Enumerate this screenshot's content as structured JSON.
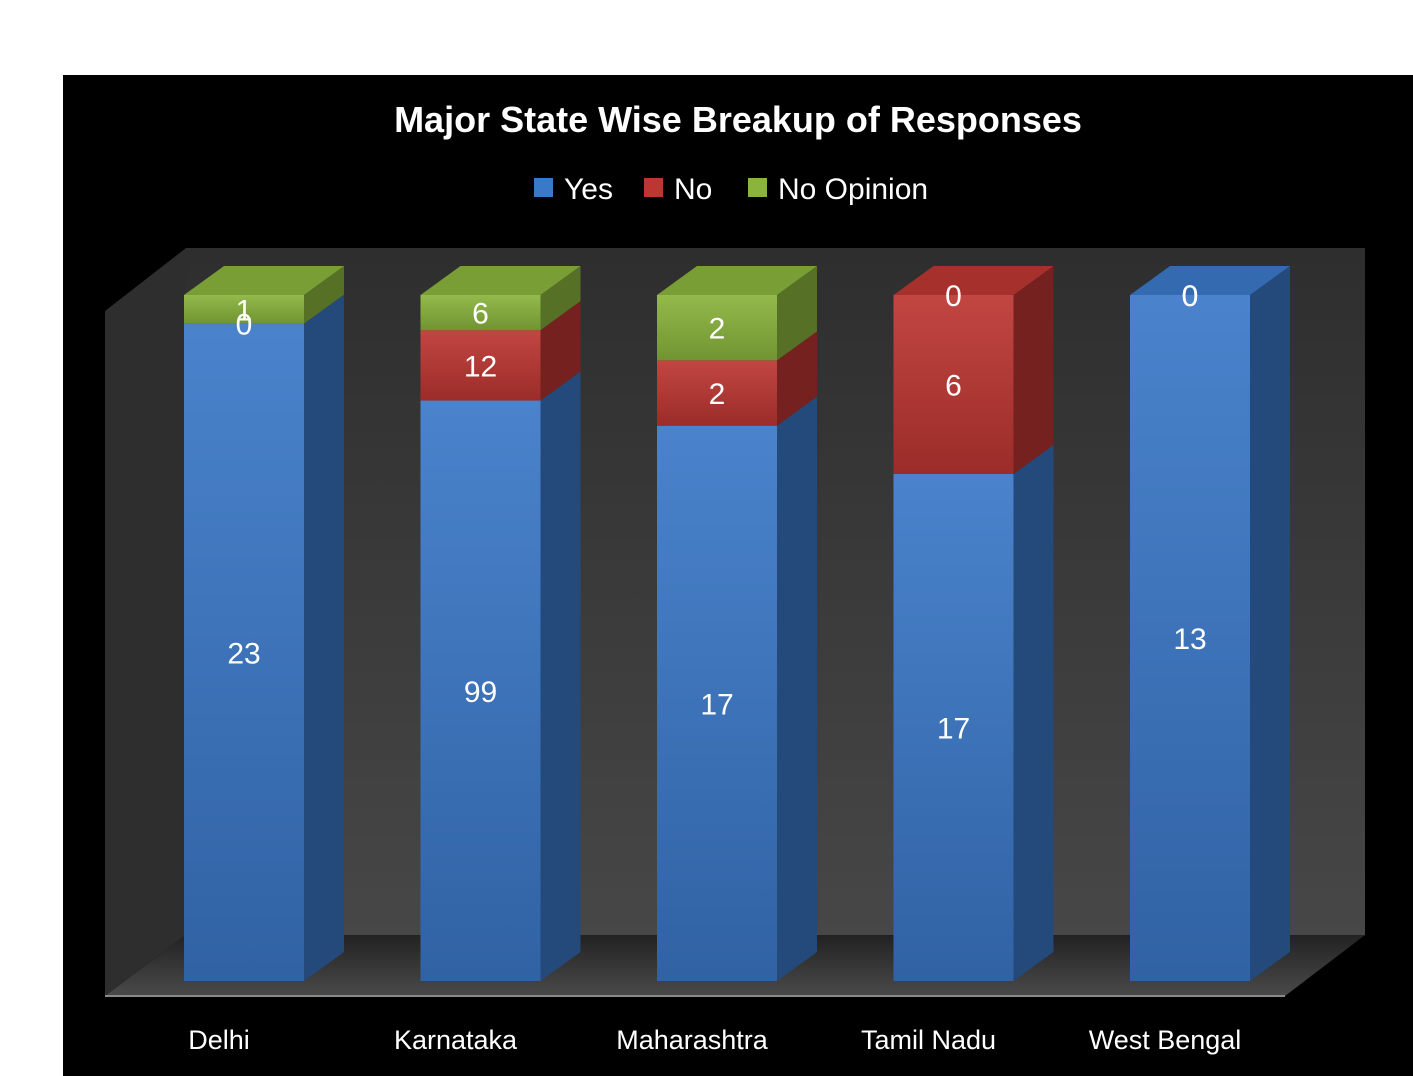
{
  "chart_data": {
    "type": "bar",
    "stacked": true,
    "normalized_percent": true,
    "three_d": true,
    "title": "Major State Wise Breakup of Responses",
    "categories": [
      "Delhi",
      "Karnataka",
      "Maharashtra",
      "Tamil Nadu",
      "West Bengal"
    ],
    "series": [
      {
        "name": "Yes",
        "values": [
          23,
          99,
          17,
          17,
          13
        ],
        "color": "#3a78c8"
      },
      {
        "name": "No",
        "values": [
          0,
          12,
          2,
          6,
          0
        ],
        "color": "#bd3632"
      },
      {
        "name": "No Opinion",
        "values": [
          1,
          6,
          2,
          0,
          0
        ],
        "color": "#8ab43c"
      }
    ],
    "legend_position": "top",
    "grid": false,
    "background": "#000000"
  }
}
